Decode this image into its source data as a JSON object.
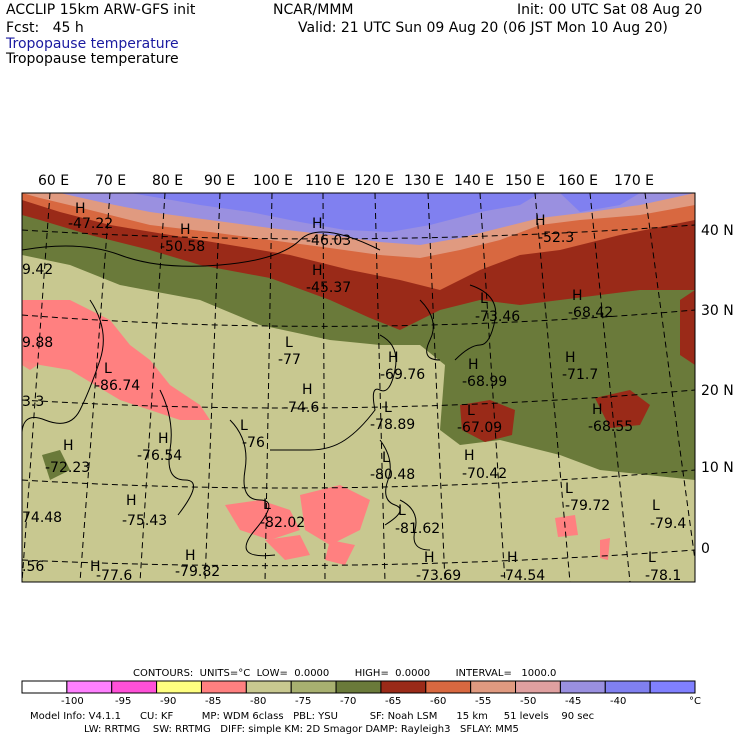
{
  "header": {
    "model": "ACCLIP 15km ARW-GFS init",
    "org": "NCAR/MMM",
    "init": "Init: 00 UTC Sat 08 Aug 20",
    "fcst": "Fcst:   45 h",
    "valid": "Valid: 21 UTC Sun 09 Aug 20 (06 JST Mon 10 Aug 20)",
    "field_title_1": "Tropopause temperature",
    "field_title_2": "Tropopause temperature"
  },
  "map": {
    "lon_labels": [
      "60 E",
      "70 E",
      "80 E",
      "90 E",
      "100 E",
      "110 E",
      "120 E",
      "130 E",
      "140 E",
      "150 E",
      "160 E",
      "170 E"
    ],
    "lat_labels": [
      "40 N",
      "30 N",
      "20 N",
      "10 N",
      "0"
    ],
    "highs_lows": [
      {
        "kind": "H",
        "value": "-47.22"
      },
      {
        "kind": "H",
        "value": "-50.58"
      },
      {
        "kind": "H",
        "value": "-46.03"
      },
      {
        "kind": "H",
        "value": "-45.37"
      },
      {
        "kind": "H",
        "value": "-52.3"
      },
      {
        "kind": "L",
        "value": "-73.46"
      },
      {
        "kind": "H",
        "value": "-68.42"
      },
      {
        "kind": "",
        "value": "9.42"
      },
      {
        "kind": "",
        "value": "9.88"
      },
      {
        "kind": "L",
        "value": "-86.74"
      },
      {
        "kind": "L",
        "value": "-77"
      },
      {
        "kind": "H",
        "value": "-69.76"
      },
      {
        "kind": "H",
        "value": "-68.99"
      },
      {
        "kind": "H",
        "value": "-71.7"
      },
      {
        "kind": "H",
        "value": "-74.6"
      },
      {
        "kind": "L",
        "value": "-67.09"
      },
      {
        "kind": "H",
        "value": "-68.55"
      },
      {
        "kind": "",
        "value": "3.3"
      },
      {
        "kind": "H",
        "value": "-76.54"
      },
      {
        "kind": "L",
        "value": "-78.89"
      },
      {
        "kind": "L",
        "value": "-76"
      },
      {
        "kind": "H",
        "value": "-72.23"
      },
      {
        "kind": "L",
        "value": "-80.48"
      },
      {
        "kind": "H",
        "value": "-70.42"
      },
      {
        "kind": "L",
        "value": "-79.72"
      },
      {
        "kind": "",
        "value": "74.48"
      },
      {
        "kind": "H",
        "value": "-75.43"
      },
      {
        "kind": "L",
        "value": "-82.02"
      },
      {
        "kind": "L",
        "value": "-81.62"
      },
      {
        "kind": "L",
        "value": "-79.4"
      },
      {
        "kind": "",
        "value": ".56"
      },
      {
        "kind": "H",
        "value": "-79.82"
      },
      {
        "kind": "H",
        "value": "-73.69"
      },
      {
        "kind": "H",
        "value": "-74.54"
      },
      {
        "kind": "L",
        "value": "-78.1"
      },
      {
        "kind": "H",
        "value": "-77.6"
      }
    ]
  },
  "contours_line": "CONTOURS:  UNITS=°C  LOW=  0.0000        HIGH=  0.0000        INTERVAL=   1000.0",
  "colorbar": {
    "colors": [
      "#ffffff",
      "#ff80ff",
      "#ff50d8",
      "#ffff80",
      "#ff8080",
      "#c8c890",
      "#a8b070",
      "#6a7a3a",
      "#9a2a18",
      "#d86840",
      "#e09a80",
      "#e0a0a0",
      "#9a90e0",
      "#8080f0",
      "#8080ff"
    ],
    "tick_labels": [
      "-100",
      "-95",
      "-90",
      "-85",
      "-80",
      "-75",
      "-70",
      "-65",
      "-60",
      "-55",
      "-50",
      "-45",
      "-40"
    ],
    "unit": "°C"
  },
  "footer": {
    "line1": "Model Info: V4.1.1      CU: KF         MP: WDM 6class   PBL: YSU          SF: Noah LSM      15 km     51 levels    90 sec",
    "line2": "                 LW: RRTMG    SW: RRTMG   DIFF: simple KM: 2D Smagor DAMP: Rayleigh3   SFLAY: MM5"
  }
}
